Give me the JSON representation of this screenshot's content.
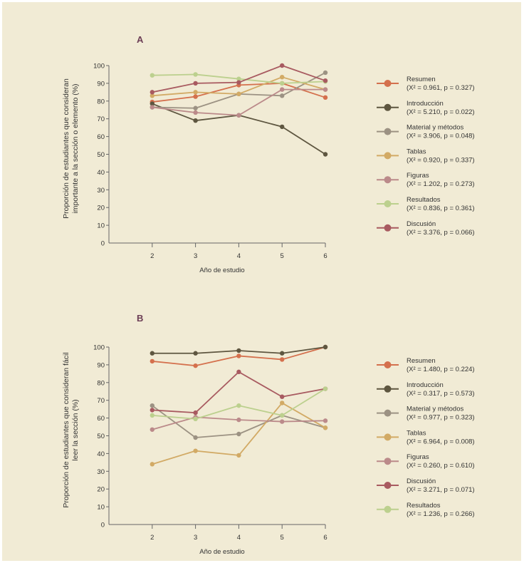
{
  "chart_data": [
    {
      "type": "line",
      "panel_label": "A",
      "title": "",
      "xlabel": "Año de estudio",
      "ylabel_lines": [
        "Proporción de estudiantes que consideran",
        "importante a la sección o elemento (%)"
      ],
      "x": [
        2,
        3,
        4,
        5,
        6
      ],
      "x_ticks": [
        "2",
        "3",
        "4",
        "5",
        "6"
      ],
      "xlim": [
        1,
        6
      ],
      "ylim": [
        0,
        100
      ],
      "y_ticks": [
        "0",
        "10",
        "20",
        "30",
        "40",
        "50",
        "60",
        "70",
        "80",
        "90",
        "100"
      ],
      "grid": false,
      "legend_placement": "right",
      "series": [
        {
          "name": "Resumen",
          "stat": "(X² = 0.961, p = 0.327)",
          "color": "#d4704d",
          "values": [
            79.5,
            82.5,
            89,
            90,
            82
          ]
        },
        {
          "name": "Introducción",
          "stat": "(X² = 5.210, p = 0.022)",
          "color": "#5e5640",
          "values": [
            78.5,
            69,
            72,
            65.5,
            50
          ]
        },
        {
          "name": "Material y métodos",
          "stat": "(X² = 3.906, p = 0.048)",
          "color": "#9c9283",
          "values": [
            76.5,
            76,
            84,
            83,
            96
          ]
        },
        {
          "name": "Tablas",
          "stat": "(X² = 0.920, p = 0.337)",
          "color": "#d2aa65",
          "values": [
            83,
            85,
            84,
            93.5,
            86.5
          ]
        },
        {
          "name": "Figuras",
          "stat": "(X² = 1.202, p = 0.273)",
          "color": "#bb8a8a",
          "values": [
            76.5,
            73.5,
            72,
            86.5,
            86.5
          ]
        },
        {
          "name": "Resultados",
          "stat": "(X² = 0.836, p = 0.361)",
          "color": "#bcd08e",
          "values": [
            94.5,
            95,
            92.5,
            90,
            91
          ]
        },
        {
          "name": "Discusión",
          "stat": "(X² = 3.376, p = 0.066)",
          "color": "#a85a60",
          "values": [
            85,
            90,
            90.5,
            100,
            91.5
          ]
        }
      ]
    },
    {
      "type": "line",
      "panel_label": "B",
      "title": "",
      "xlabel": "Año de estudio",
      "ylabel_lines": [
        "Proporción de estudiantes que consideran fácil",
        "leer la sección (%)"
      ],
      "x": [
        2,
        3,
        4,
        5,
        6
      ],
      "x_ticks": [
        "2",
        "3",
        "4",
        "5",
        "6"
      ],
      "xlim": [
        1,
        6
      ],
      "ylim": [
        0,
        100
      ],
      "y_ticks": [
        "0",
        "10",
        "20",
        "30",
        "40",
        "50",
        "60",
        "70",
        "80",
        "90",
        "100"
      ],
      "grid": false,
      "legend_placement": "right",
      "series": [
        {
          "name": "Resumen",
          "stat": "(X² = 1.480, p = 0.224)",
          "color": "#d4704d",
          "values": [
            92,
            89.5,
            95,
            93,
            100
          ]
        },
        {
          "name": "Introducción",
          "stat": "(X² = 0.317, p = 0.573)",
          "color": "#5e5640",
          "values": [
            96.5,
            96.5,
            98,
            96.5,
            100
          ]
        },
        {
          "name": "Material y métodos",
          "stat": "(X² = 0.977, p = 0.323)",
          "color": "#9c9283",
          "values": [
            67,
            49,
            51,
            61.5,
            54.5
          ]
        },
        {
          "name": "Tablas",
          "stat": "(X² = 6.964, p = 0.008)",
          "color": "#d2aa65",
          "values": [
            34,
            41.5,
            39,
            68.5,
            54.5
          ]
        },
        {
          "name": "Figuras",
          "stat": "(X² = 0.260, p = 0.610)",
          "color": "#bb8a8a",
          "values": [
            53.5,
            60.5,
            59,
            58,
            58.5
          ]
        },
        {
          "name": "Discusión",
          "stat": "(X² = 3.271, p = 0.071)",
          "color": "#a85a60",
          "values": [
            64.5,
            63,
            86,
            72,
            76.5
          ]
        },
        {
          "name": "Resultados",
          "stat": "(X² = 1.236, p = 0.266)",
          "color": "#bcd08e",
          "values": [
            61.5,
            59.5,
            67,
            61.5,
            76.5
          ]
        }
      ]
    }
  ]
}
